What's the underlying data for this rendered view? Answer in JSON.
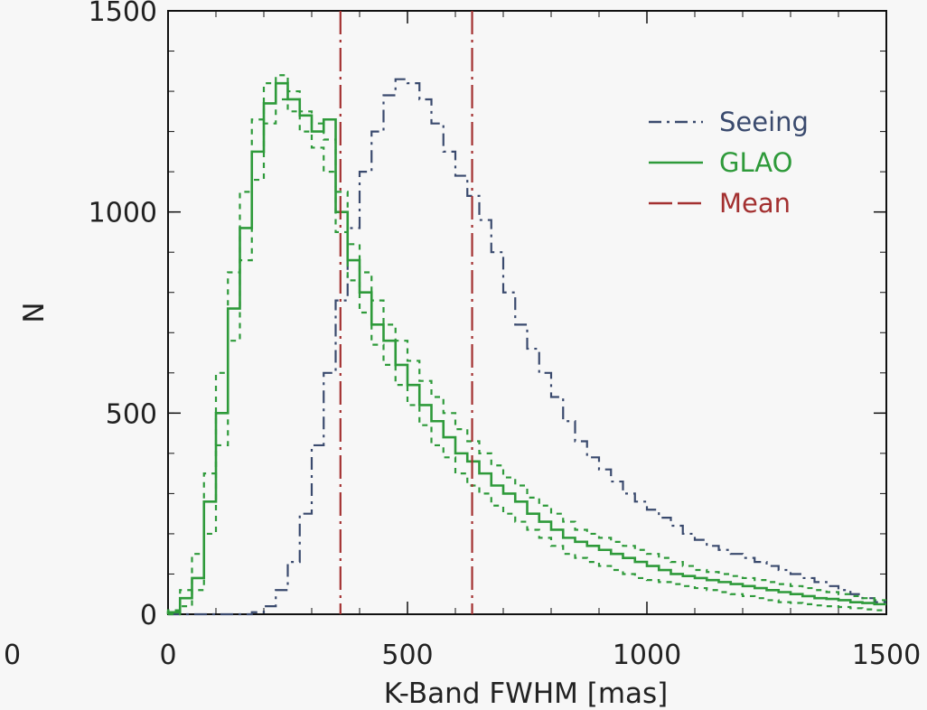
{
  "chart_data": {
    "type": "line",
    "title": "",
    "xlabel": "K-Band FWHM [mas]",
    "ylabel": "N",
    "xlim": [
      0,
      1500
    ],
    "ylim": [
      0,
      1500
    ],
    "x_ticks": [
      0,
      500,
      1000,
      1500
    ],
    "y_ticks": [
      0,
      500,
      1000,
      1500
    ],
    "outer_x_label": "0",
    "legend": {
      "placement": "top-right",
      "entries": [
        {
          "label": "Seeing",
          "color": "#3a4a6e",
          "style": "dash-dot"
        },
        {
          "label": "GLAO",
          "color": "#2e9a3a",
          "style": "solid"
        },
        {
          "label": "Mean",
          "color": "#a33030",
          "style": "long-dash"
        }
      ]
    },
    "bin_edges": [
      0,
      25,
      50,
      75,
      100,
      125,
      150,
      175,
      200,
      225,
      250,
      275,
      300,
      325,
      350,
      375,
      400,
      425,
      450,
      475,
      500,
      525,
      550,
      575,
      600,
      625,
      650,
      675,
      700,
      725,
      750,
      775,
      800,
      825,
      850,
      875,
      900,
      925,
      950,
      975,
      1000,
      1025,
      1050,
      1075,
      1100,
      1125,
      1150,
      1175,
      1200,
      1225,
      1250,
      1275,
      1300,
      1325,
      1350,
      1375,
      1400,
      1425,
      1450,
      1475,
      1500
    ],
    "series": [
      {
        "name": "Seeing",
        "color": "#3a4a6e",
        "style": "dash-dot",
        "values": [
          0,
          0,
          0,
          0,
          0,
          0,
          0,
          5,
          20,
          60,
          130,
          250,
          420,
          600,
          780,
          960,
          1100,
          1200,
          1290,
          1330,
          1320,
          1280,
          1220,
          1150,
          1090,
          1040,
          980,
          900,
          800,
          720,
          660,
          600,
          540,
          480,
          430,
          390,
          360,
          330,
          300,
          280,
          260,
          240,
          220,
          200,
          185,
          170,
          160,
          150,
          140,
          130,
          120,
          110,
          100,
          90,
          80,
          70,
          60,
          50,
          40,
          30
        ]
      },
      {
        "name": "GLAO",
        "color": "#2e9a3a",
        "style": "solid",
        "values": [
          5,
          40,
          90,
          280,
          500,
          760,
          960,
          1150,
          1270,
          1320,
          1280,
          1240,
          1200,
          1230,
          1000,
          880,
          800,
          720,
          680,
          620,
          570,
          520,
          480,
          440,
          400,
          380,
          350,
          320,
          300,
          280,
          250,
          230,
          210,
          190,
          180,
          170,
          160,
          150,
          140,
          130,
          120,
          110,
          100,
          95,
          90,
          85,
          80,
          75,
          70,
          65,
          60,
          55,
          50,
          45,
          40,
          38,
          35,
          30,
          28,
          25
        ]
      },
      {
        "name": "GLAO upper",
        "color": "#2e9a3a",
        "style": "dotted",
        "values": [
          10,
          60,
          150,
          350,
          600,
          850,
          1050,
          1230,
          1320,
          1340,
          1300,
          1250,
          1220,
          1180,
          1050,
          920,
          850,
          780,
          720,
          680,
          630,
          580,
          540,
          500,
          460,
          430,
          400,
          370,
          340,
          320,
          290,
          270,
          250,
          230,
          210,
          200,
          190,
          180,
          170,
          160,
          150,
          140,
          130,
          120,
          110,
          105,
          100,
          95,
          90,
          85,
          80,
          75,
          70,
          65,
          60,
          55,
          50,
          45,
          40,
          35
        ]
      },
      {
        "name": "GLAO lower",
        "color": "#2e9a3a",
        "style": "dotted",
        "values": [
          0,
          20,
          60,
          200,
          420,
          680,
          880,
          1080,
          1220,
          1280,
          1250,
          1200,
          1160,
          1100,
          950,
          830,
          750,
          670,
          620,
          570,
          520,
          470,
          420,
          390,
          350,
          320,
          300,
          270,
          250,
          230,
          210,
          190,
          170,
          150,
          140,
          130,
          120,
          110,
          100,
          90,
          85,
          80,
          75,
          70,
          65,
          60,
          55,
          50,
          45,
          40,
          35,
          30,
          28,
          25,
          22,
          20,
          18,
          15,
          12,
          10
        ]
      }
    ],
    "vlines": [
      {
        "name": "Mean GLAO",
        "x": 360,
        "color": "#a33030"
      },
      {
        "name": "Mean Seeing",
        "x": 635,
        "color": "#a33030"
      }
    ]
  }
}
